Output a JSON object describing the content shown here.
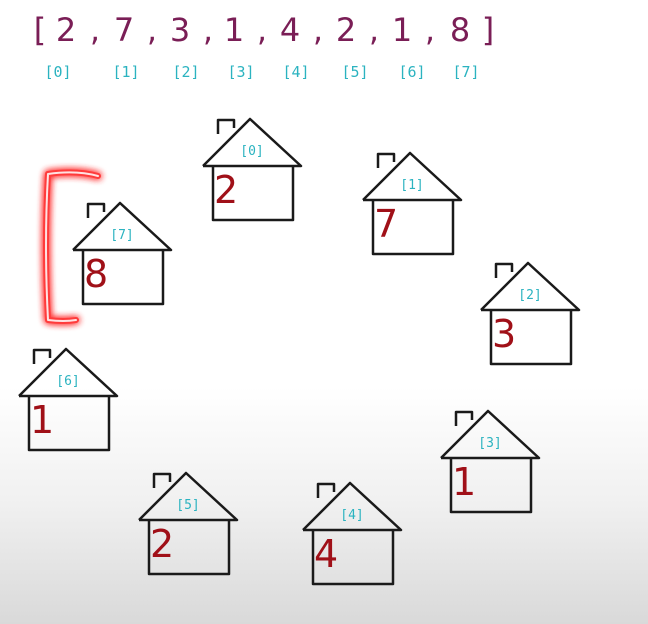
{
  "array": {
    "open_bracket": "[",
    "close_bracket": "]",
    "separator": ",",
    "values": [
      "2",
      "7",
      "3",
      "1",
      "4",
      "2",
      "1",
      "8"
    ],
    "indices": [
      "[0]",
      "[1]",
      "[2]",
      "[3]",
      "[4]",
      "[5]",
      "[6]",
      "[7]"
    ]
  },
  "houses": [
    {
      "index": "[0]",
      "value": "2"
    },
    {
      "index": "[1]",
      "value": "7"
    },
    {
      "index": "[2]",
      "value": "3"
    },
    {
      "index": "[3]",
      "value": "1"
    },
    {
      "index": "[4]",
      "value": "4"
    },
    {
      "index": "[5]",
      "value": "2"
    },
    {
      "index": "[6]",
      "value": "1"
    },
    {
      "index": "[7]",
      "value": "8"
    }
  ],
  "colors": {
    "array_text": "#7a1e56",
    "index_text": "#2bb3c0",
    "value_text": "#a01018",
    "outline": "#1a1a1a",
    "highlight": "#ff1a1a"
  }
}
